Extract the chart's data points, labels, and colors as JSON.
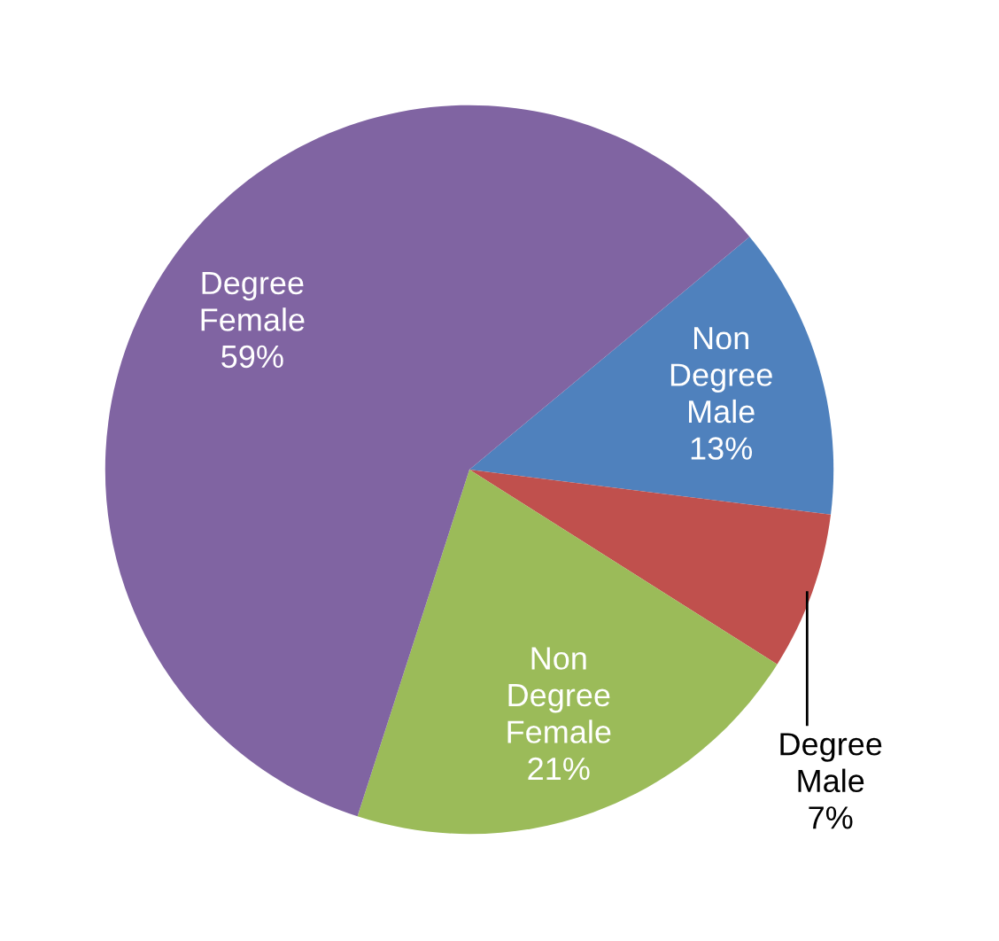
{
  "chart_data": {
    "type": "pie",
    "categories": [
      "Non Degree Male",
      "Degree Male",
      "Non Degree Female",
      "Degree Female"
    ],
    "values": [
      13,
      7,
      21,
      59
    ],
    "value_labels": [
      "13%",
      "7%",
      "21%",
      "59%"
    ],
    "colors": [
      "#4f81bd",
      "#c0504d",
      "#9bbb59",
      "#8064a2"
    ],
    "legend": false
  }
}
